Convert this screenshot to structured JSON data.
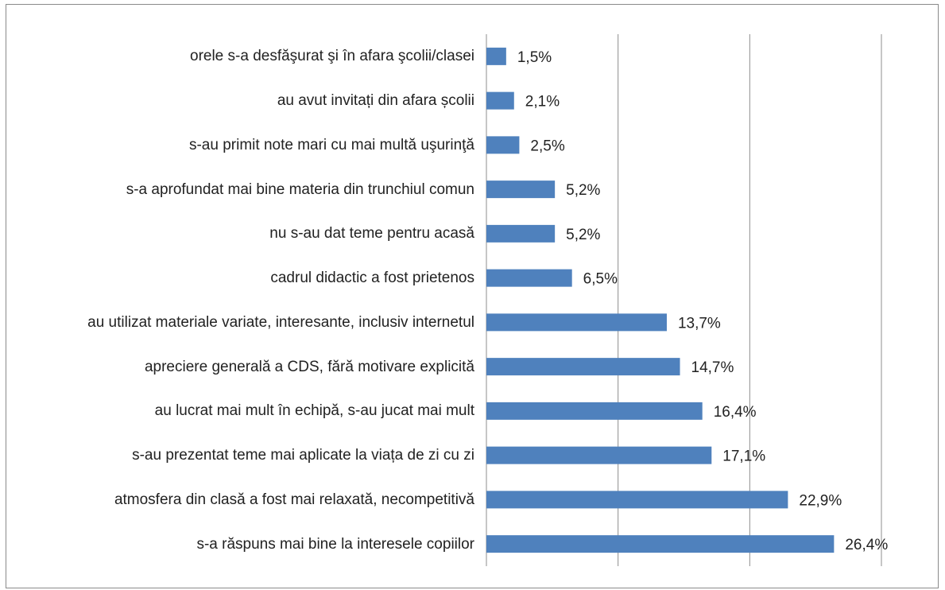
{
  "chart_data": {
    "type": "bar",
    "orientation": "horizontal",
    "categories": [
      "orele s-a desfăşurat şi în afara şcolii/clasei",
      "au avut invitați din afara școlii",
      "s-au primit note mari cu mai multă uşurinţă",
      "s-a aprofundat mai bine  materia din trunchiul comun",
      "nu s-au dat teme pentru acasă",
      "cadrul didactic a fost prietenos",
      "au utilizat materiale variate, interesante, inclusiv internetul",
      "apreciere generală a CDS, fără motivare explicită",
      "au lucrat mai mult în echipă, s-au jucat mai mult",
      "s-au prezentat teme mai aplicate la viața de zi cu zi",
      "atmosfera din clasă a fost mai relaxată, necompetitivă",
      "s-a răspuns mai bine la interesele copiilor"
    ],
    "values": [
      1.5,
      2.1,
      2.5,
      5.2,
      5.2,
      6.5,
      13.7,
      14.7,
      16.4,
      17.1,
      22.9,
      26.4
    ],
    "value_labels": [
      "1,5%",
      "2,1%",
      "2,5%",
      "5,2%",
      "5,2%",
      "6,5%",
      "13,7%",
      "14,7%",
      "16,4%",
      "17,1%",
      "22,9%",
      "26,4%"
    ],
    "color": "#4f81bd",
    "xlim": [
      0,
      30
    ],
    "xticks": [
      0,
      10,
      20,
      30
    ],
    "grid": true
  }
}
